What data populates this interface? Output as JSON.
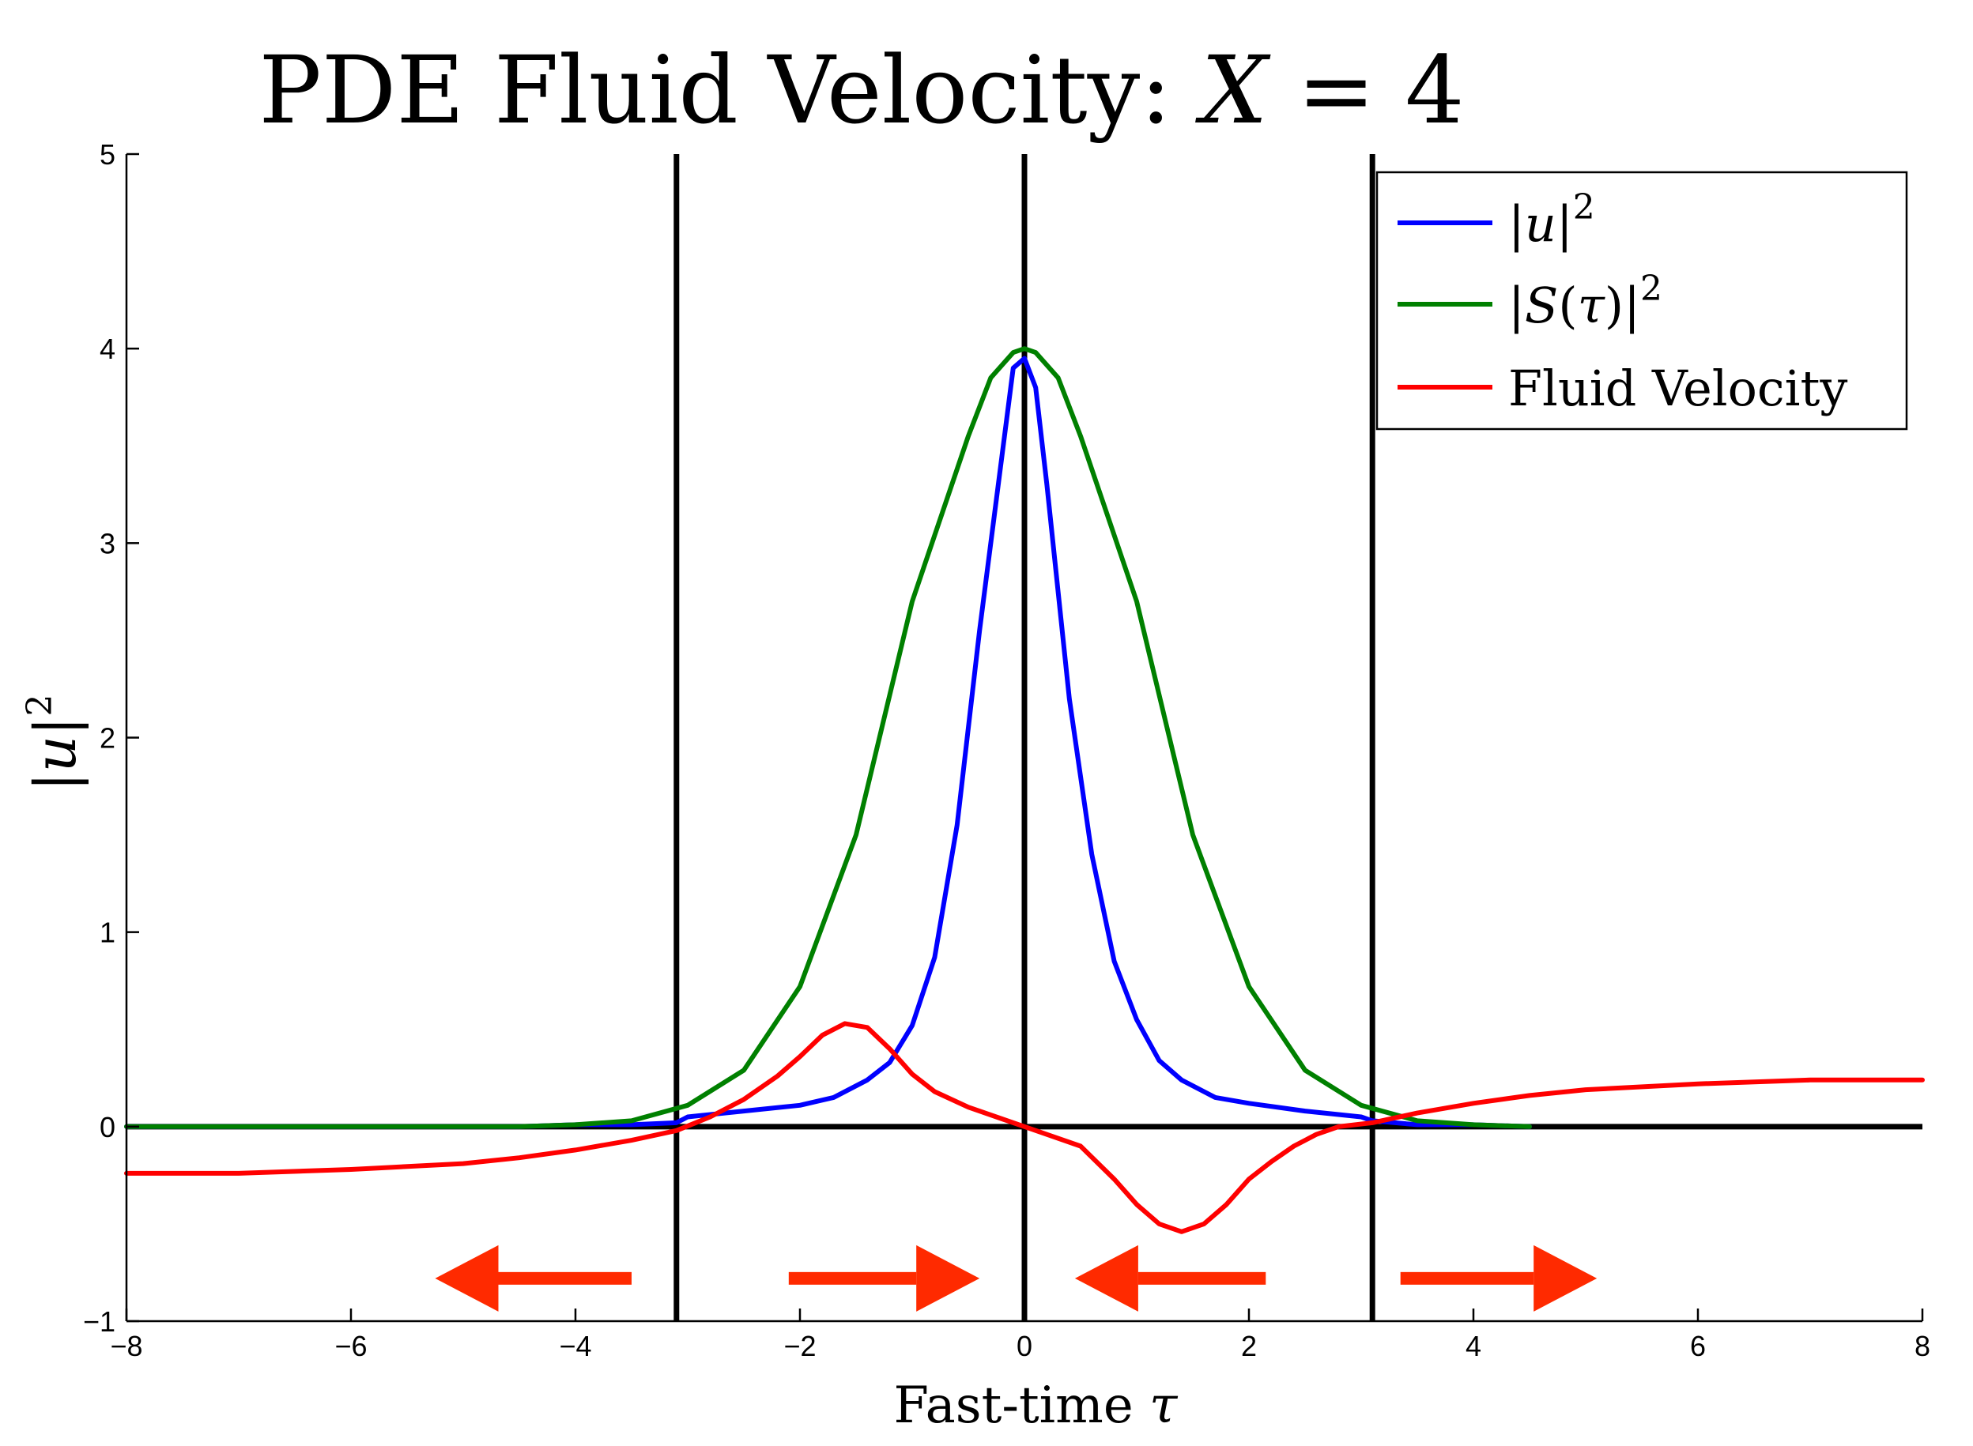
{
  "chart_data": {
    "type": "line",
    "title": {
      "prefix": "PDE Fluid Velocity:  ",
      "var": "X",
      "suffix": " = 4"
    },
    "xlabel": {
      "text": "Fast-time ",
      "var": "τ"
    },
    "ylabel": {
      "text": "|u|",
      "var": "u",
      "sup": "2"
    },
    "xlim": [
      -8,
      8
    ],
    "ylim": [
      -1,
      5
    ],
    "xticks": [
      -8,
      -6,
      -4,
      -2,
      0,
      2,
      4,
      6,
      8
    ],
    "yticks": [
      -1,
      0,
      1,
      2,
      3,
      4,
      5
    ],
    "xtick_labels": [
      "−8",
      "−6",
      "−4",
      "−2",
      "0",
      "2",
      "4",
      "6",
      "8"
    ],
    "ytick_labels": [
      "−1",
      "0",
      "1",
      "2",
      "3",
      "4",
      "5"
    ],
    "grid": false,
    "legend_position": "top-right",
    "vertical_lines": [
      -3.1,
      0,
      3.1
    ],
    "horizontal_lines": [
      0
    ],
    "series": [
      {
        "name": "|u|²",
        "legend": {
          "open": "|",
          "var": "u",
          "close": "|",
          "sup": "2"
        },
        "color": "#0000ff",
        "x": [
          -8,
          -4.5,
          -4,
          -3.5,
          -3.1,
          -3.0,
          -2.5,
          -2.0,
          -1.7,
          -1.4,
          -1.2,
          -1.0,
          -0.8,
          -0.6,
          -0.4,
          -0.2,
          -0.1,
          0,
          0.1,
          0.2,
          0.4,
          0.6,
          0.8,
          1.0,
          1.2,
          1.4,
          1.7,
          2.0,
          2.5,
          3.0,
          3.1,
          3.5,
          4.0,
          4.5
        ],
        "y": [
          0.0,
          0.0,
          0.01,
          0.01,
          0.02,
          0.05,
          0.08,
          0.11,
          0.15,
          0.24,
          0.33,
          0.52,
          0.87,
          1.55,
          2.55,
          3.45,
          3.9,
          3.95,
          3.8,
          3.3,
          2.2,
          1.4,
          0.85,
          0.55,
          0.34,
          0.24,
          0.15,
          0.12,
          0.08,
          0.05,
          0.03,
          0.01,
          0.01,
          0.0
        ]
      },
      {
        "name": "|S(τ)|²",
        "legend": {
          "open": "|",
          "var": "S",
          "mid": "(",
          "var2": "τ",
          "close": ")|",
          "sup": "2"
        },
        "color": "#008000",
        "x": [
          -8,
          -4.5,
          -4,
          -3.5,
          -3.0,
          -2.5,
          -2.0,
          -1.5,
          -1.0,
          -0.5,
          -0.3,
          -0.1,
          0,
          0.1,
          0.3,
          0.5,
          1.0,
          1.5,
          2.0,
          2.5,
          3.0,
          3.5,
          4.0,
          4.5
        ],
        "y": [
          0.0,
          0.0,
          0.01,
          0.03,
          0.11,
          0.29,
          0.72,
          1.5,
          2.7,
          3.55,
          3.85,
          3.98,
          4.0,
          3.98,
          3.85,
          3.55,
          2.7,
          1.5,
          0.72,
          0.29,
          0.11,
          0.03,
          0.01,
          0.0
        ]
      },
      {
        "name": "Fluid Velocity",
        "legend": {
          "text": "Fluid Velocity"
        },
        "color": "#ff0000",
        "x": [
          -8,
          -7,
          -6,
          -5,
          -4.5,
          -4,
          -3.5,
          -3.1,
          -2.8,
          -2.5,
          -2.2,
          -2.0,
          -1.8,
          -1.6,
          -1.4,
          -1.2,
          -1.0,
          -0.8,
          -0.5,
          -0.2,
          0,
          0.2,
          0.5,
          0.8,
          1.0,
          1.2,
          1.4,
          1.6,
          1.8,
          2.0,
          2.2,
          2.4,
          2.6,
          2.8,
          3.1,
          3.5,
          4,
          4.5,
          5,
          6,
          7,
          8
        ],
        "y": [
          -0.24,
          -0.24,
          -0.22,
          -0.19,
          -0.16,
          -0.12,
          -0.07,
          -0.02,
          0.05,
          0.14,
          0.26,
          0.36,
          0.47,
          0.53,
          0.51,
          0.4,
          0.27,
          0.18,
          0.1,
          0.04,
          0.0,
          -0.04,
          -0.1,
          -0.27,
          -0.4,
          -0.5,
          -0.54,
          -0.5,
          -0.4,
          -0.27,
          -0.18,
          -0.1,
          -0.04,
          0.0,
          0.02,
          0.07,
          0.12,
          0.16,
          0.19,
          0.22,
          0.24,
          0.24
        ]
      }
    ],
    "annotations": {
      "arrow_color": "#ff2a00",
      "arrows": [
        {
          "direction": "left",
          "x_from": -3.5,
          "x_to": -5.25,
          "y": -0.78
        },
        {
          "direction": "right",
          "x_from": -2.1,
          "x_to": -0.4,
          "y": -0.78
        },
        {
          "direction": "left",
          "x_from": 2.15,
          "x_to": 0.45,
          "y": -0.78
        },
        {
          "direction": "right",
          "x_from": 3.35,
          "x_to": 5.1,
          "y": -0.78
        }
      ]
    }
  }
}
